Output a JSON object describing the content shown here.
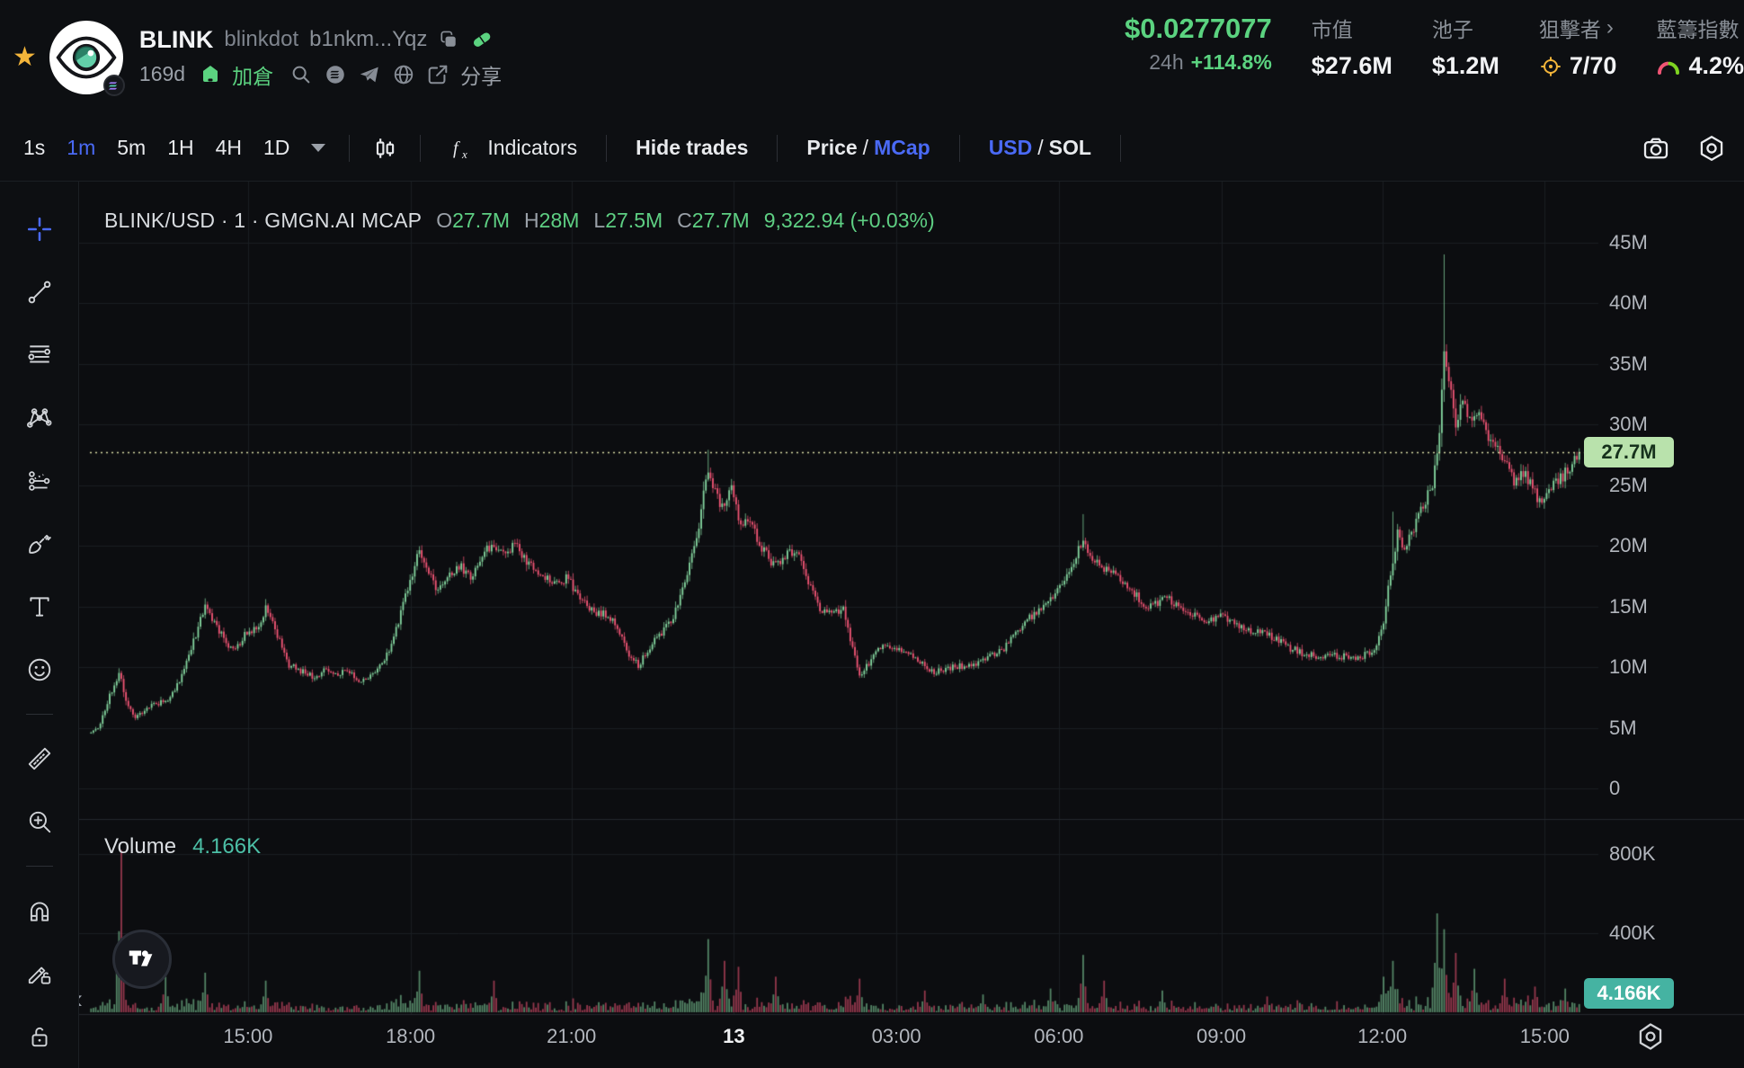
{
  "header": {
    "token_symbol": "BLINK",
    "token_name": "blinkdot",
    "contract_short": "b1nkm...Yqz",
    "age": "169d",
    "add_position_label": "加倉",
    "share_label": "分享",
    "price": "$0.0277077",
    "change_label": "24h",
    "change_value": "+114.8%",
    "stats": [
      {
        "label": "市值",
        "value": "$27.6M"
      },
      {
        "label": "池子",
        "value": "$1.2M"
      },
      {
        "label": "狙擊者",
        "value": "7/70"
      },
      {
        "label": "藍籌指數",
        "value": "4.2%"
      }
    ],
    "icons": [
      "star-icon",
      "token-avatar-eye",
      "copy-icon",
      "pill-icon",
      "add-position-icon",
      "search-icon",
      "solana-doc-icon",
      "telegram-icon",
      "globe-icon",
      "share-icon",
      "sniper-target-icon",
      "bluechip-gauge-icon"
    ]
  },
  "toolbar": {
    "intervals": [
      "1s",
      "1m",
      "5m",
      "1H",
      "4H",
      "1D"
    ],
    "active_interval": "1m",
    "indicators_label": "Indicators",
    "hide_trades_label": "Hide trades",
    "price_label": "Price",
    "mcap_label": "MCap",
    "usd_label": "USD",
    "sol_label": "SOL",
    "icons": [
      "interval-caret-icon",
      "candle-style-icon",
      "fx-indicators-icon",
      "camera-icon",
      "chart-settings-icon"
    ]
  },
  "legend": {
    "title": "BLINK/USD · 1 · GMGN.AI MCAP",
    "o_label": "O",
    "o_value": "27.7M",
    "h_label": "H",
    "h_value": "28M",
    "l_label": "L",
    "l_value": "27.5M",
    "c_label": "C",
    "c_value": "27.7M",
    "extra": "9,322.94 (+0.03%)"
  },
  "volume_pane": {
    "label": "Volume",
    "value": "4.166K",
    "badge": "4.166K"
  },
  "axis": {
    "price_badge": "27.7M",
    "price_ticks": [
      {
        "label": "45M",
        "v": 45
      },
      {
        "label": "40M",
        "v": 40
      },
      {
        "label": "35M",
        "v": 35
      },
      {
        "label": "30M",
        "v": 30
      },
      {
        "label": "25M",
        "v": 25
      },
      {
        "label": "20M",
        "v": 20
      },
      {
        "label": "15M",
        "v": 15
      },
      {
        "label": "10M",
        "v": 10
      },
      {
        "label": "5M",
        "v": 5
      },
      {
        "label": "0",
        "v": 0
      }
    ],
    "volume_ticks": [
      {
        "label": "800K",
        "v": 800
      },
      {
        "label": "400K",
        "v": 400
      }
    ],
    "time_ticks": [
      {
        "label": "15:00",
        "f": 0.053
      },
      {
        "label": "18:00",
        "f": 0.162
      },
      {
        "label": "21:00",
        "f": 0.27
      },
      {
        "label": "13",
        "f": 0.379,
        "bold": true
      },
      {
        "label": "03:00",
        "f": 0.488
      },
      {
        "label": "06:00",
        "f": 0.597
      },
      {
        "label": "09:00",
        "f": 0.706
      },
      {
        "label": "12:00",
        "f": 0.814
      },
      {
        "label": "15:00",
        "f": 0.923
      }
    ]
  },
  "sidebar_tools": [
    {
      "name": "crosshair",
      "divider_after": false
    },
    {
      "name": "trend-line",
      "divider_after": false
    },
    {
      "name": "fib-lines",
      "divider_after": false
    },
    {
      "name": "xabcd-pattern",
      "divider_after": false
    },
    {
      "name": "projection",
      "divider_after": false
    },
    {
      "name": "brush",
      "divider_after": false
    },
    {
      "name": "text",
      "divider_after": false
    },
    {
      "name": "emoji",
      "divider_after": true
    },
    {
      "name": "ruler",
      "divider_after": false
    },
    {
      "name": "zoom-in",
      "divider_after": true
    },
    {
      "name": "magnet",
      "divider_after": false
    },
    {
      "name": "drawing-lock",
      "divider_after": false
    },
    {
      "name": "lock-all",
      "divider_after": false
    }
  ],
  "misc": {
    "collapse_chevron": "‹",
    "tv_logo": "tradingview-logo",
    "axis_settings": "axis-settings-hexagon-icon"
  },
  "colors": {
    "accent_blue": "#4a6af5",
    "text_green": "#5bd380",
    "candle_up": "#83d49e",
    "candle_down": "#ef5474",
    "teal": "#4cbfa6",
    "badge_price_bg": "#b9e2ac",
    "badge_vol_bg": "#45b3a2",
    "gold": "#f3b53a",
    "dotted_line": "#d6d9a2",
    "grid": "#1a1d22",
    "divider": "#24282e"
  },
  "chart_data": {
    "type": "candlestick",
    "symbol": "BLINK/USD",
    "interval": "1m",
    "unit": "market cap, millions USD",
    "current_value": 27.7,
    "ylim": [
      0,
      49
    ],
    "volume_ylim_k": [
      0,
      880
    ],
    "candles": 640,
    "seed": 11,
    "price_anchors": [
      [
        0.0,
        4.6
      ],
      [
        0.006,
        5.2
      ],
      [
        0.012,
        7.5
      ],
      [
        0.019,
        9.6
      ],
      [
        0.024,
        7.0
      ],
      [
        0.03,
        5.9
      ],
      [
        0.04,
        6.8
      ],
      [
        0.052,
        7.3
      ],
      [
        0.06,
        9.0
      ],
      [
        0.07,
        12.5
      ],
      [
        0.077,
        15.3
      ],
      [
        0.083,
        13.6
      ],
      [
        0.09,
        12.2
      ],
      [
        0.096,
        11.2
      ],
      [
        0.104,
        12.8
      ],
      [
        0.112,
        13.4
      ],
      [
        0.118,
        15.0
      ],
      [
        0.126,
        12.4
      ],
      [
        0.133,
        10.2
      ],
      [
        0.142,
        9.6
      ],
      [
        0.15,
        9.2
      ],
      [
        0.158,
        9.8
      ],
      [
        0.165,
        9.4
      ],
      [
        0.172,
        9.9
      ],
      [
        0.18,
        8.8
      ],
      [
        0.19,
        9.4
      ],
      [
        0.197,
        10.5
      ],
      [
        0.205,
        13.0
      ],
      [
        0.213,
        16.5
      ],
      [
        0.221,
        19.8
      ],
      [
        0.227,
        17.8
      ],
      [
        0.232,
        16.5
      ],
      [
        0.24,
        17.6
      ],
      [
        0.248,
        18.3
      ],
      [
        0.255,
        17.4
      ],
      [
        0.262,
        19.2
      ],
      [
        0.27,
        20.0
      ],
      [
        0.278,
        19.0
      ],
      [
        0.285,
        20.1
      ],
      [
        0.293,
        18.6
      ],
      [
        0.302,
        17.6
      ],
      [
        0.312,
        16.8
      ],
      [
        0.32,
        17.4
      ],
      [
        0.33,
        15.4
      ],
      [
        0.338,
        14.6
      ],
      [
        0.348,
        14.2
      ],
      [
        0.356,
        12.6
      ],
      [
        0.362,
        11.0
      ],
      [
        0.368,
        10.1
      ],
      [
        0.376,
        11.8
      ],
      [
        0.384,
        12.8
      ],
      [
        0.392,
        14.4
      ],
      [
        0.4,
        17.5
      ],
      [
        0.408,
        21.5
      ],
      [
        0.415,
        26.5
      ],
      [
        0.42,
        24.0
      ],
      [
        0.425,
        23.0
      ],
      [
        0.43,
        24.8
      ],
      [
        0.436,
        22.0
      ],
      [
        0.444,
        21.5
      ],
      [
        0.452,
        19.5
      ],
      [
        0.46,
        18.3
      ],
      [
        0.468,
        19.4
      ],
      [
        0.474,
        19.7
      ],
      [
        0.482,
        17.0
      ],
      [
        0.49,
        14.8
      ],
      [
        0.498,
        14.4
      ],
      [
        0.505,
        14.9
      ],
      [
        0.511,
        12.0
      ],
      [
        0.517,
        9.2
      ],
      [
        0.524,
        10.6
      ],
      [
        0.532,
        11.8
      ],
      [
        0.54,
        11.4
      ],
      [
        0.55,
        11.2
      ],
      [
        0.558,
        10.3
      ],
      [
        0.566,
        9.6
      ],
      [
        0.575,
        9.9
      ],
      [
        0.583,
        10.1
      ],
      [
        0.59,
        10.0
      ],
      [
        0.598,
        10.6
      ],
      [
        0.606,
        11.0
      ],
      [
        0.613,
        11.5
      ],
      [
        0.62,
        12.6
      ],
      [
        0.628,
        13.8
      ],
      [
        0.636,
        14.6
      ],
      [
        0.644,
        15.3
      ],
      [
        0.652,
        16.8
      ],
      [
        0.66,
        18.5
      ],
      [
        0.666,
        20.5
      ],
      [
        0.671,
        19.0
      ],
      [
        0.676,
        18.6
      ],
      [
        0.684,
        17.8
      ],
      [
        0.692,
        17.3
      ],
      [
        0.7,
        16.2
      ],
      [
        0.708,
        15.1
      ],
      [
        0.716,
        15.3
      ],
      [
        0.724,
        15.6
      ],
      [
        0.732,
        14.8
      ],
      [
        0.74,
        14.3
      ],
      [
        0.75,
        13.9
      ],
      [
        0.76,
        14.2
      ],
      [
        0.77,
        13.5
      ],
      [
        0.778,
        13.0
      ],
      [
        0.786,
        12.8
      ],
      [
        0.795,
        12.4
      ],
      [
        0.805,
        11.6
      ],
      [
        0.815,
        11.1
      ],
      [
        0.825,
        10.9
      ],
      [
        0.835,
        11.0
      ],
      [
        0.845,
        10.8
      ],
      [
        0.855,
        10.9
      ],
      [
        0.862,
        11.5
      ],
      [
        0.868,
        13.2
      ],
      [
        0.872,
        17.0
      ],
      [
        0.878,
        21.0
      ],
      [
        0.883,
        19.6
      ],
      [
        0.889,
        21.6
      ],
      [
        0.896,
        23.4
      ],
      [
        0.902,
        25.3
      ],
      [
        0.906,
        29.5
      ],
      [
        0.909,
        36.0
      ],
      [
        0.913,
        33.0
      ],
      [
        0.917,
        30.3
      ],
      [
        0.922,
        32.3
      ],
      [
        0.928,
        29.8
      ],
      [
        0.933,
        31.3
      ],
      [
        0.938,
        29.3
      ],
      [
        0.944,
        27.9
      ],
      [
        0.95,
        26.9
      ],
      [
        0.956,
        25.2
      ],
      [
        0.962,
        26.2
      ],
      [
        0.968,
        24.9
      ],
      [
        0.974,
        23.4
      ],
      [
        0.98,
        24.6
      ],
      [
        0.986,
        25.4
      ],
      [
        0.992,
        26.1
      ],
      [
        0.997,
        26.9
      ],
      [
        1.0,
        27.7
      ]
    ],
    "wick_spikes": [
      [
        0.909,
        44.0
      ],
      [
        0.415,
        27.9
      ],
      [
        0.666,
        22.6
      ],
      [
        0.875,
        22.8
      ],
      [
        0.019,
        9.9
      ]
    ],
    "volume_spikes_k": [
      [
        0.02,
        820
      ],
      [
        0.05,
        180
      ],
      [
        0.077,
        200
      ],
      [
        0.118,
        160
      ],
      [
        0.221,
        210
      ],
      [
        0.27,
        160
      ],
      [
        0.415,
        370
      ],
      [
        0.425,
        260
      ],
      [
        0.435,
        230
      ],
      [
        0.46,
        180
      ],
      [
        0.517,
        170
      ],
      [
        0.56,
        110
      ],
      [
        0.6,
        90
      ],
      [
        0.644,
        120
      ],
      [
        0.666,
        290
      ],
      [
        0.68,
        160
      ],
      [
        0.72,
        110
      ],
      [
        0.79,
        80
      ],
      [
        0.868,
        180
      ],
      [
        0.875,
        260
      ],
      [
        0.905,
        500
      ],
      [
        0.909,
        420
      ],
      [
        0.917,
        300
      ],
      [
        0.93,
        220
      ],
      [
        0.95,
        170
      ],
      [
        0.97,
        130
      ],
      [
        0.99,
        120
      ]
    ]
  }
}
